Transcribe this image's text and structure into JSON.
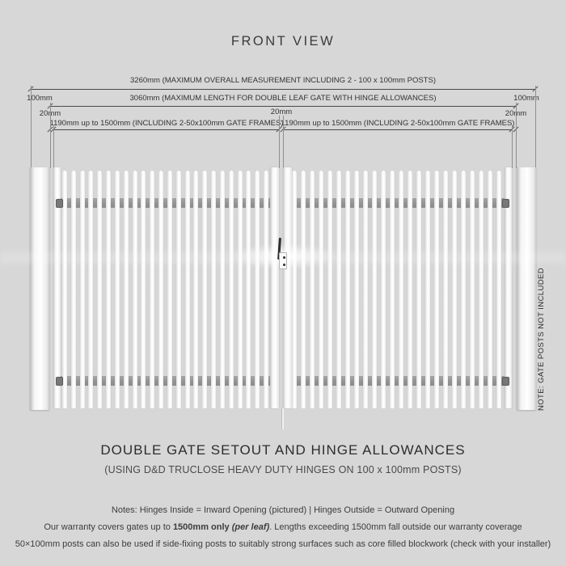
{
  "title": "FRONT VIEW",
  "colors": {
    "background": "#d7d7d8",
    "dimension_line": "#4a4a4a",
    "gate_white": "#fcfcfc",
    "rail_gray": "#9c9c9c"
  },
  "dimensions": {
    "overall": "3260mm (MAXIMUM OVERALL MEASUREMENT INCLUDING 2 - 100 x 100mm POSTS)",
    "double_leaf": "3060mm (MAXIMUM LENGTH FOR DOUBLE LEAF GATE WITH HINGE ALLOWANCES)",
    "post_left": "100mm",
    "post_right": "100mm",
    "hinge_gap_left": "20mm",
    "hinge_gap_center": "20mm",
    "hinge_gap_right": "20mm",
    "leaf_left": "1190mm up to 1500mm (INCLUDING 2-50x100mm GATE FRAMES)",
    "leaf_right": "1190mm up to 1500mm (INCLUDING 2-50x100mm GATE FRAMES)"
  },
  "note_vertical": "NOTE: GATE POSTS NOT INCLUDED",
  "footer": {
    "heading": "DOUBLE GATE SETOUT AND HINGE ALLOWANCES",
    "subheading": "(USING D&D TRUCLOSE HEAVY DUTY HINGES ON 100 x 100mm POSTS)",
    "note1": "Notes: Hinges Inside = Inward Opening (pictured) | Hinges Outside = Outward Opening",
    "note2_prefix": "Our warranty covers gates up to ",
    "note2_bold": "1500mm only ",
    "note2_bold_italic": "(per leaf)",
    "note2_suffix": ". Lengths exceeding 1500mm fall outside our warranty coverage",
    "note3": "50×100mm posts can also be used if side-fixing posts to suitably strong surfaces such as core filled blockwork (check with your installer)"
  }
}
